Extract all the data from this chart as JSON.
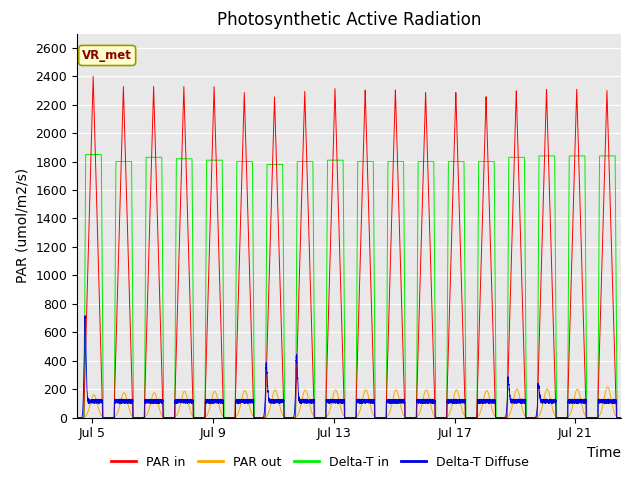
{
  "title": "Photosynthetic Active Radiation",
  "ylabel": "PAR (umol/m2/s)",
  "xlabel": "Time",
  "annotation": "VR_met",
  "ylim": [
    0,
    2700
  ],
  "yticks": [
    0,
    200,
    400,
    600,
    800,
    1000,
    1200,
    1400,
    1600,
    1800,
    2000,
    2200,
    2400,
    2600
  ],
  "xtick_labels": [
    "Jul 5",
    "Jul 9",
    "Jul 13",
    "Jul 17",
    "Jul 21"
  ],
  "xtick_positions": [
    0.5,
    4.5,
    8.5,
    12.5,
    16.5
  ],
  "num_days": 18,
  "xlim": [
    0,
    18
  ],
  "background_color": "#e8e8e8",
  "colors": {
    "par_in": "#ff0000",
    "par_out": "#ffa500",
    "delta_t_in": "#00ee00",
    "delta_t_diffuse": "#0000dd"
  },
  "legend_labels": [
    "PAR in",
    "PAR out",
    "Delta-T in",
    "Delta-T Diffuse"
  ],
  "title_fontsize": 12,
  "axis_fontsize": 10,
  "tick_fontsize": 9
}
